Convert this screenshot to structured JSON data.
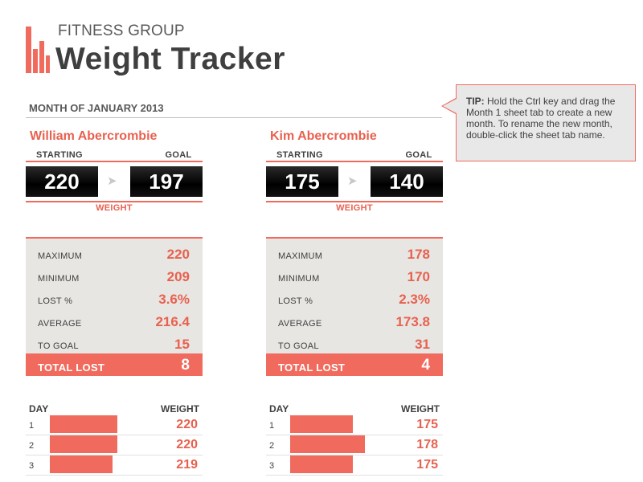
{
  "header": {
    "brand": "FITNESS GROUP",
    "title": "Weight Tracker",
    "month": "MONTH OF JANUARY 2013"
  },
  "tip": {
    "label": "TIP:",
    "text": " Hold the Ctrl key and drag the Month 1 sheet tab to create a new month. To rename the new month, double-click the sheet tab name."
  },
  "labels": {
    "starting": "STARTING",
    "goal": "GOAL",
    "weight": "WEIGHT",
    "maximum": "MAXIMUM",
    "minimum": "MINIMUM",
    "lost_pct": "LOST %",
    "average": "AVERAGE",
    "to_goal": "TO GOAL",
    "total_lost": "TOTAL LOST",
    "day": "DAY",
    "weight_col": "WEIGHT"
  },
  "people": [
    {
      "name": "William Abercrombie",
      "starting": "220",
      "goal": "197",
      "maximum": "220",
      "minimum": "209",
      "lost_pct": "3.6%",
      "average": "216.4",
      "to_goal": "15",
      "total_lost": "8",
      "days": [
        {
          "day": "1",
          "weight": "220",
          "bar_fraction": 0.56
        },
        {
          "day": "2",
          "weight": "220",
          "bar_fraction": 0.56
        },
        {
          "day": "3",
          "weight": "219",
          "bar_fraction": 0.52
        }
      ]
    },
    {
      "name": "Kim Abercrombie",
      "starting": "175",
      "goal": "140",
      "maximum": "178",
      "minimum": "170",
      "lost_pct": "2.3%",
      "average": "173.8",
      "to_goal": "31",
      "total_lost": "4",
      "days": [
        {
          "day": "1",
          "weight": "175",
          "bar_fraction": 0.52
        },
        {
          "day": "2",
          "weight": "178",
          "bar_fraction": 0.62
        },
        {
          "day": "3",
          "weight": "175",
          "bar_fraction": 0.52
        }
      ]
    }
  ],
  "colors": {
    "accent": "#f06b5e",
    "accent_text": "#e8614f",
    "panel_bg": "#e7e6e3",
    "title": "#3f3f3f"
  },
  "icons": {
    "logo": "bar-chart-logo-icon",
    "arrow": "right-arrow-icon"
  }
}
